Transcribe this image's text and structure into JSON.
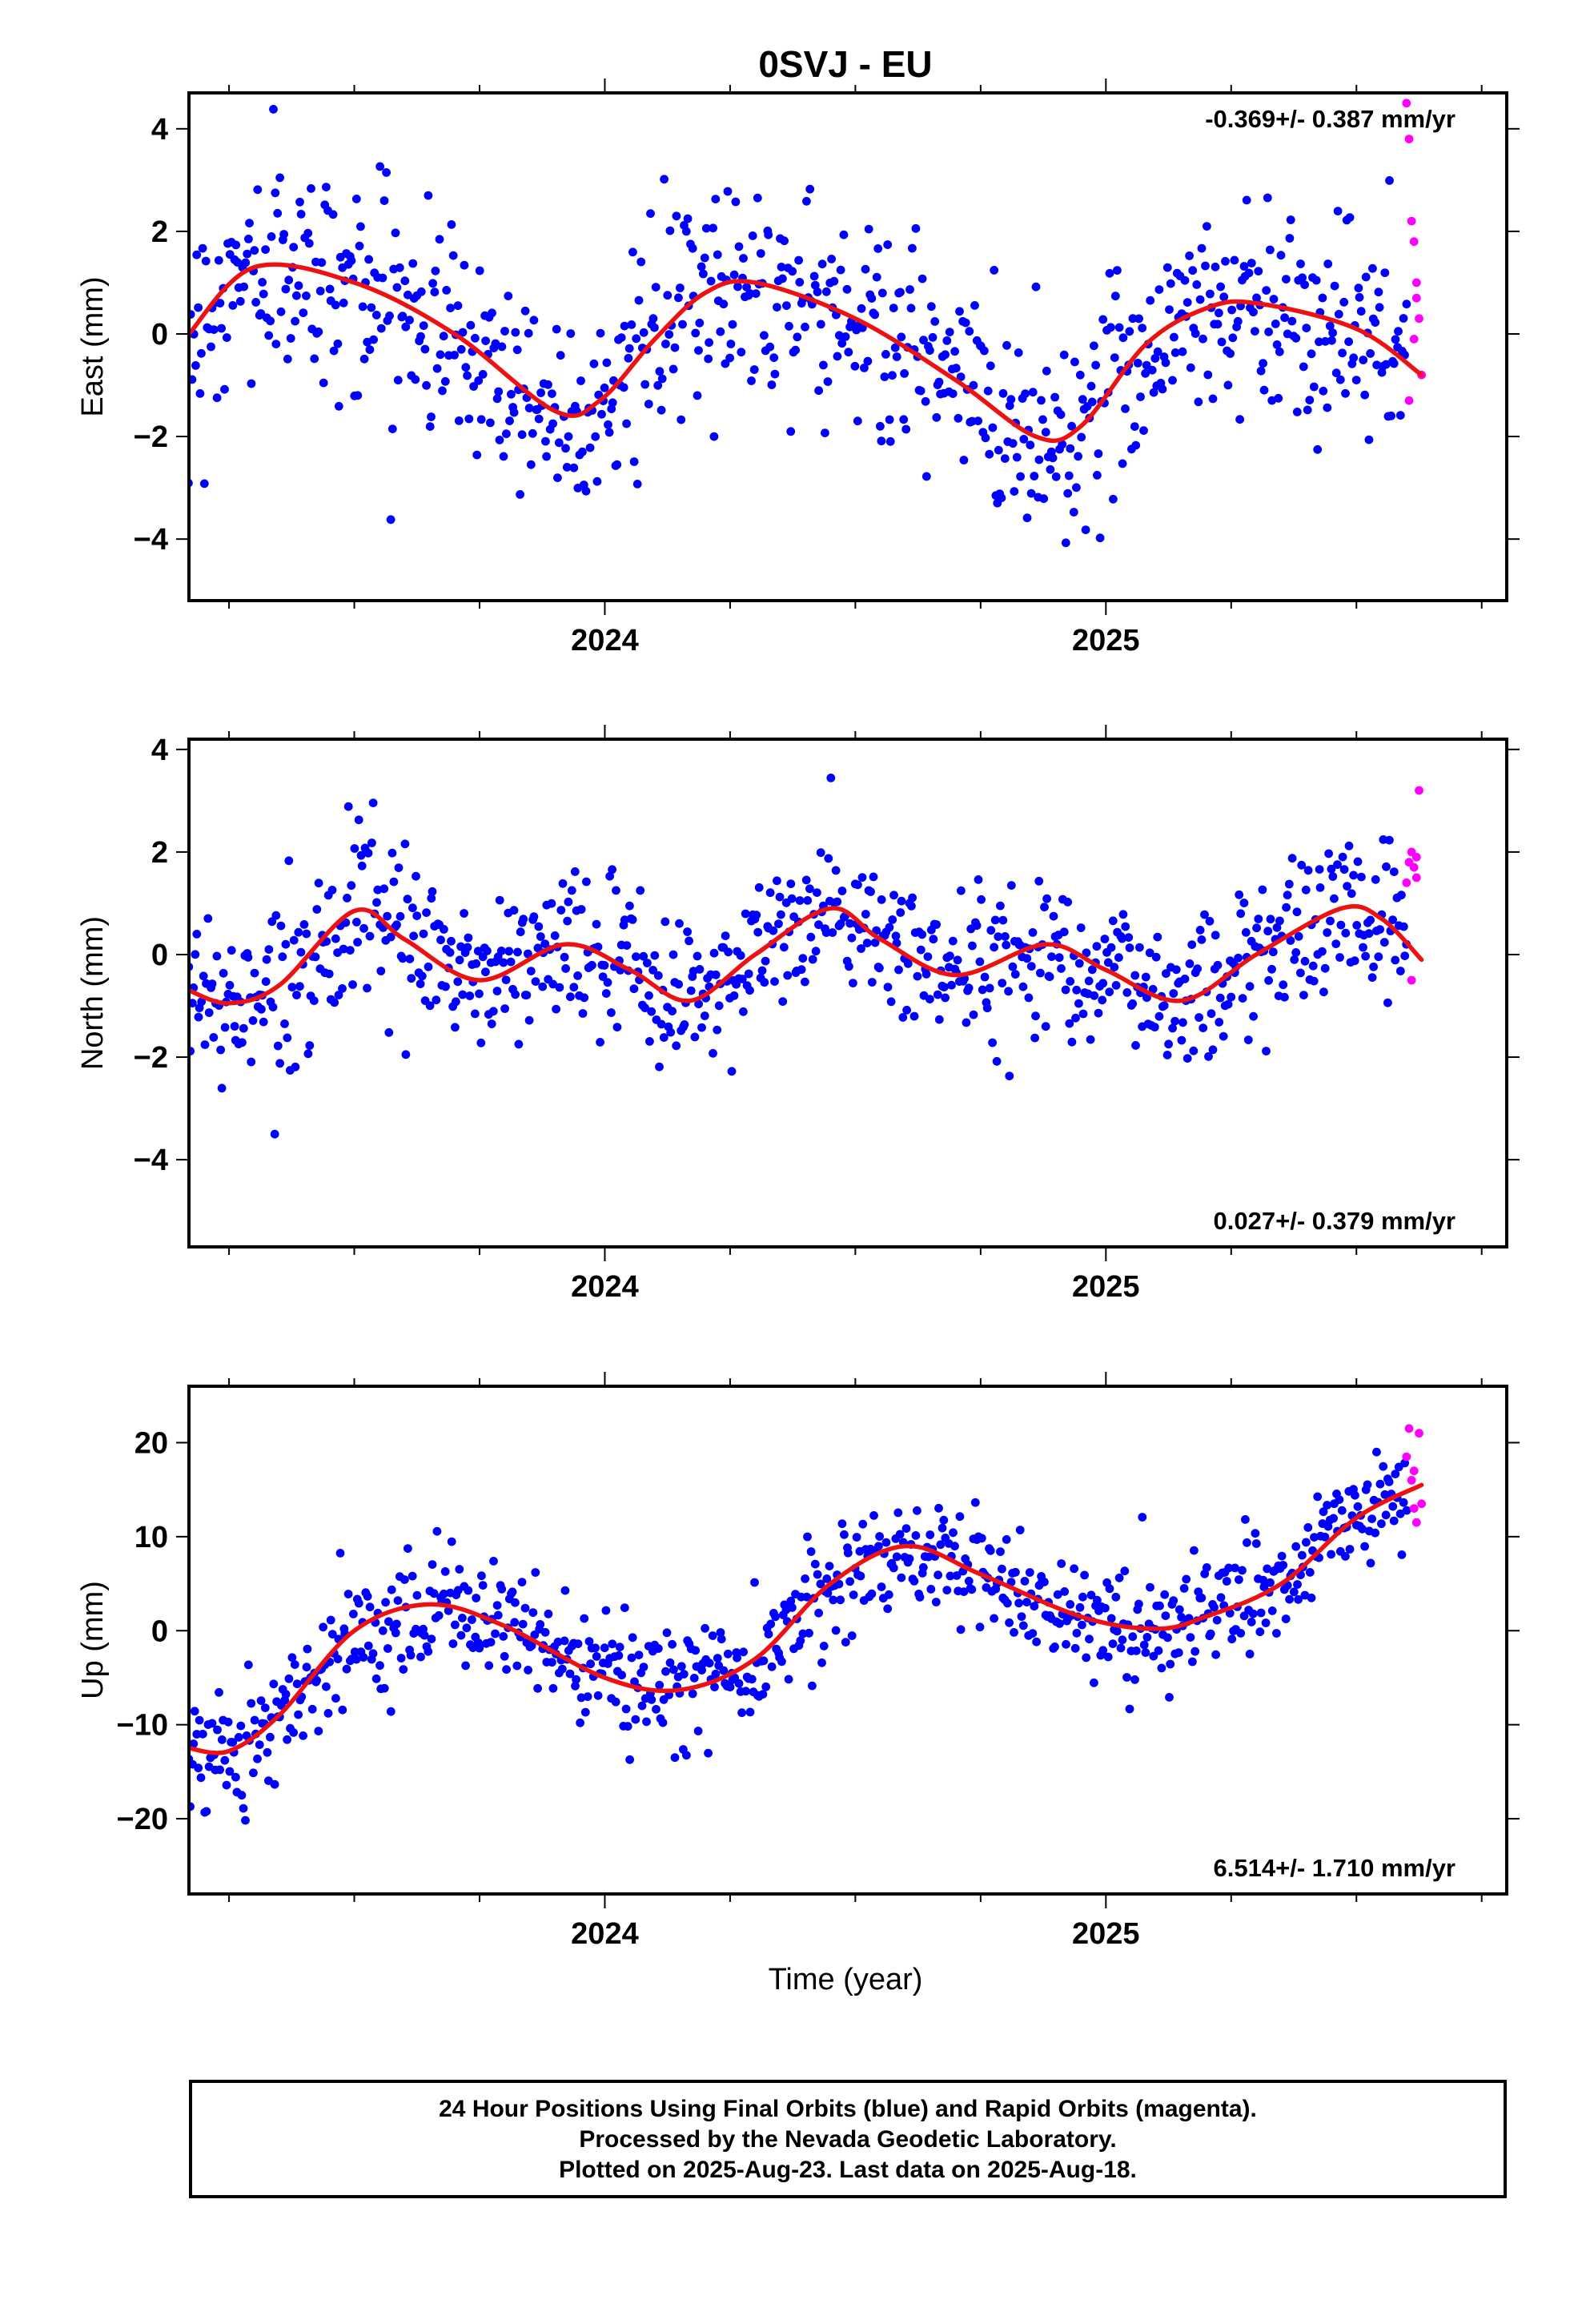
{
  "title": "0SVJ - EU",
  "xlabel": "Time (year)",
  "caption": {
    "line1": "24 Hour Positions Using Final Orbits (blue) and Rapid Orbits (magenta).",
    "line2": "Processed by the Nevada Geodetic Laboratory.",
    "line3": "Plotted on 2025-Aug-23. Last data on 2025-Aug-18."
  },
  "colors": {
    "final": "#0000ff",
    "rapid": "#ff00ff",
    "model": "#ee1111"
  },
  "chart_data": [
    {
      "type": "scatter",
      "ylabel": "East (mm)",
      "rate": "-0.369+/- 0.387 mm/yr",
      "rate_position": "top-right",
      "xlim": [
        2023.17,
        2025.8
      ],
      "ylim": [
        -5.2,
        4.7
      ],
      "xticks": [
        2024,
        2025
      ],
      "xtick_labels": [
        "2024",
        "2025"
      ],
      "yticks": [
        -4,
        -2,
        0,
        2,
        4
      ],
      "ytick_labels": [
        "−4",
        "−2",
        "0",
        "2",
        "4"
      ],
      "model": {
        "x": [
          2023.17,
          2023.3,
          2023.5,
          2023.7,
          2023.9,
          2023.99,
          2024.1,
          2024.2,
          2024.3,
          2024.5,
          2024.7,
          2024.86,
          2024.95,
          2025.08,
          2025.2,
          2025.3,
          2025.5,
          2025.63
        ],
        "y": [
          0.0,
          1.3,
          1.0,
          0.0,
          -1.5,
          -1.3,
          -0.1,
          0.8,
          1.0,
          0.3,
          -0.9,
          -2.0,
          -1.8,
          -0.2,
          0.5,
          0.6,
          0.1,
          -0.8
        ]
      },
      "final_points": {
        "count": 780,
        "amplitude": 1.7,
        "from": 2023.17,
        "to": 2025.6
      },
      "rapid_points": {
        "x": [
          2025.6,
          2025.605,
          2025.61,
          2025.615,
          2025.62,
          2025.625,
          2025.605,
          2025.615,
          2025.62,
          2025.63
        ],
        "y": [
          4.5,
          3.8,
          2.2,
          1.8,
          1.0,
          0.3,
          -1.3,
          -0.1,
          0.7,
          -0.8
        ]
      }
    },
    {
      "type": "scatter",
      "ylabel": "North (mm)",
      "rate": "0.027+/- 0.379 mm/yr",
      "rate_position": "bottom-right",
      "xlim": [
        2023.17,
        2025.8
      ],
      "ylim": [
        -5.7,
        4.2
      ],
      "xticks": [
        2024,
        2025
      ],
      "xtick_labels": [
        "2024",
        "2025"
      ],
      "yticks": [
        -4,
        -2,
        0,
        2,
        4
      ],
      "ytick_labels": [
        "−4",
        "−2",
        "0",
        "2",
        "4"
      ],
      "model": {
        "x": [
          2023.17,
          2023.25,
          2023.35,
          2023.5,
          2023.6,
          2023.75,
          2023.92,
          2024.05,
          2024.17,
          2024.3,
          2024.45,
          2024.55,
          2024.7,
          2024.88,
          2025.0,
          2025.15,
          2025.3,
          2025.47,
          2025.55,
          2025.63
        ],
        "y": [
          -0.7,
          -0.95,
          -0.6,
          0.85,
          0.3,
          -0.5,
          0.2,
          -0.3,
          -0.9,
          0.0,
          0.9,
          0.3,
          -0.4,
          0.2,
          -0.3,
          -0.9,
          0.0,
          0.9,
          0.7,
          -0.1
        ]
      },
      "final_points": {
        "count": 780,
        "amplitude": 1.2,
        "from": 2023.17,
        "to": 2025.6
      },
      "rapid_points": {
        "x": [
          2025.6,
          2025.605,
          2025.61,
          2025.615,
          2025.62,
          2025.625,
          2025.61,
          2025.62
        ],
        "y": [
          1.4,
          1.8,
          2.0,
          1.7,
          1.9,
          3.2,
          -0.5,
          1.5
        ]
      }
    },
    {
      "type": "scatter",
      "ylabel": "Up (mm)",
      "rate": "6.514+/- 1.710 mm/yr",
      "rate_position": "bottom-right",
      "xlim": [
        2023.17,
        2025.8
      ],
      "ylim": [
        -28,
        26
      ],
      "xticks": [
        2024,
        2025
      ],
      "xtick_labels": [
        "2024",
        "2025"
      ],
      "yticks": [
        -20,
        -10,
        0,
        10,
        20
      ],
      "ytick_labels": [
        "−20",
        "−10",
        "0",
        "10",
        "20"
      ],
      "model": {
        "x": [
          2023.17,
          2023.25,
          2023.35,
          2023.5,
          2023.65,
          2023.8,
          2024.0,
          2024.15,
          2024.3,
          2024.45,
          2024.6,
          2024.75,
          2024.95,
          2025.1,
          2025.2,
          2025.35,
          2025.5,
          2025.63
        ],
        "y": [
          -12.5,
          -12.8,
          -9.0,
          0.0,
          2.8,
          0.5,
          -5.0,
          -6.3,
          -3.0,
          5.0,
          9.0,
          6.0,
          1.5,
          0.2,
          1.5,
          5.0,
          12.0,
          15.5
        ]
      },
      "final_points": {
        "count": 780,
        "amplitude": 5.0,
        "from": 2023.17,
        "to": 2025.6
      },
      "rapid_points": {
        "x": [
          2025.6,
          2025.605,
          2025.61,
          2025.615,
          2025.62,
          2025.625,
          2025.63,
          2025.615
        ],
        "y": [
          18.5,
          21.5,
          16.0,
          13.0,
          11.5,
          21.0,
          13.5,
          17.0
        ]
      }
    }
  ]
}
